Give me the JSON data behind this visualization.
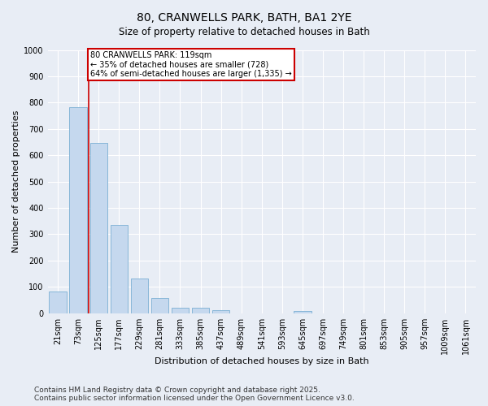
{
  "title": "80, CRANWELLS PARK, BATH, BA1 2YE",
  "subtitle": "Size of property relative to detached houses in Bath",
  "xlabel": "Distribution of detached houses by size in Bath",
  "ylabel": "Number of detached properties",
  "categories": [
    "21sqm",
    "73sqm",
    "125sqm",
    "177sqm",
    "229sqm",
    "281sqm",
    "333sqm",
    "385sqm",
    "437sqm",
    "489sqm",
    "541sqm",
    "593sqm",
    "645sqm",
    "697sqm",
    "749sqm",
    "801sqm",
    "853sqm",
    "905sqm",
    "957sqm",
    "1009sqm",
    "1061sqm"
  ],
  "values": [
    83,
    783,
    648,
    335,
    133,
    58,
    22,
    20,
    10,
    0,
    0,
    0,
    8,
    0,
    0,
    0,
    0,
    0,
    0,
    0,
    0
  ],
  "bar_color": "#c5d8ee",
  "bar_edge_color": "#7bafd4",
  "vline_color": "#cc0000",
  "annotation_text": "80 CRANWELLS PARK: 119sqm\n← 35% of detached houses are smaller (728)\n64% of semi-detached houses are larger (1,335) →",
  "annotation_box_color": "#cc0000",
  "ylim": [
    0,
    1000
  ],
  "yticks": [
    0,
    100,
    200,
    300,
    400,
    500,
    600,
    700,
    800,
    900,
    1000
  ],
  "bg_color": "#e8edf5",
  "plot_bg_color": "#e8edf5",
  "grid_color": "#ffffff",
  "footer_line1": "Contains HM Land Registry data © Crown copyright and database right 2025.",
  "footer_line2": "Contains public sector information licensed under the Open Government Licence v3.0.",
  "title_fontsize": 10,
  "axis_label_fontsize": 8,
  "tick_fontsize": 7,
  "footer_fontsize": 6.5
}
